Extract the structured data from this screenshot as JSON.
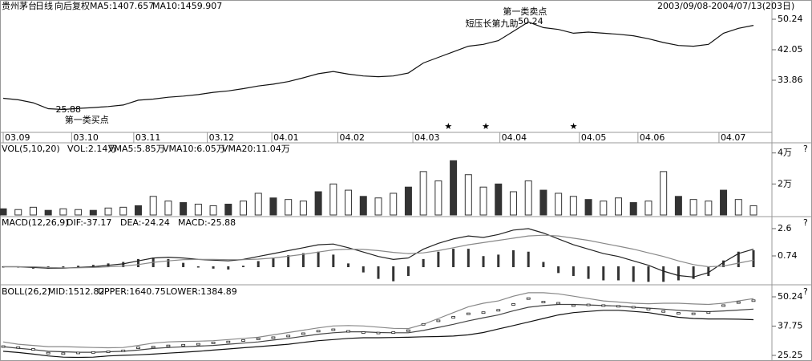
{
  "chart_data": [
    {
      "type": "line",
      "header": [
        {
          "text": "贵州茅台",
          "color": "#000"
        },
        {
          "text": "日线",
          "color": "#000"
        },
        {
          "text": "向后复权",
          "color": "#000"
        },
        {
          "text": "MA5:1407.657",
          "color": "#000"
        },
        {
          "text": "MA10:1459.907",
          "color": "#000"
        }
      ],
      "date_range": "2003/09/08-2004/07/13(203日)",
      "xlim": [
        0,
        50
      ],
      "xticks": [
        {
          "value": 0,
          "label": "03.09"
        },
        {
          "value": 4.56,
          "label": "03.10"
        },
        {
          "value": 8.7,
          "label": "03.11"
        },
        {
          "value": 13.6,
          "label": "03.12"
        },
        {
          "value": 17.9,
          "label": "04.01"
        },
        {
          "value": 22.3,
          "label": "04.02"
        },
        {
          "value": 27.3,
          "label": "04.03"
        },
        {
          "value": 33.1,
          "label": "04.04"
        },
        {
          "value": 38.4,
          "label": "04.05"
        },
        {
          "value": 42.3,
          "label": "04.06"
        },
        {
          "value": 47.7,
          "label": "04.07"
        }
      ],
      "ylim": [
        19.85,
        53.69
      ],
      "yticks": [
        33.86,
        42.05,
        50.24
      ],
      "series": [
        {
          "color": "#111",
          "kind": "line",
          "values": [
            29.0,
            28.6,
            27.8,
            26.2,
            26.0,
            26.3,
            26.5,
            26.8,
            27.2,
            28.5,
            28.8,
            29.3,
            29.6,
            30.0,
            30.6,
            31.0,
            31.6,
            32.3,
            32.8,
            33.5,
            34.5,
            35.6,
            36.2,
            35.5,
            35.0,
            34.8,
            35.0,
            35.8,
            38.5,
            40.0,
            41.5,
            43.0,
            43.5,
            44.5,
            47.0,
            49.5,
            48.0,
            47.5,
            46.5,
            46.8,
            46.5,
            46.2,
            45.8,
            45.0,
            44.0,
            43.2,
            43.0,
            43.5,
            46.5,
            47.8,
            48.6
          ]
        }
      ],
      "annotations": [
        {
          "text": "25.88",
          "x": 3.5,
          "y": 25.88
        },
        {
          "text": "第一类买点",
          "x": 4.1,
          "y": 23.1
        },
        {
          "text": "短压长第九助",
          "x": 30.8,
          "y": 48.9
        },
        {
          "text": "50.24",
          "x": 34.3,
          "y": 49.6
        },
        {
          "text": "第一类卖点",
          "x": 33.3,
          "y": 52.2
        },
        {
          "text": "★",
          "x": 29.4,
          "y": 21.36
        },
        {
          "text": "★",
          "x": 31.9,
          "y": 21.36
        },
        {
          "text": "★",
          "x": 37.75,
          "y": 21.36
        }
      ]
    },
    {
      "type": "bar",
      "header": [
        {
          "text": "VOL(5,10,20)",
          "color": "#000"
        },
        {
          "text": "VOL:2.14万",
          "color": "#000"
        },
        {
          "text": "VMA5:5.85万",
          "color": "#000"
        },
        {
          "text": "VMA10:6.05万",
          "color": "#888"
        },
        {
          "text": "VMA20:11.04万",
          "color": "#000"
        }
      ],
      "note": "?",
      "ylim": [
        0,
        45000
      ],
      "yticks": [
        {
          "value": 20000,
          "label": "2万"
        },
        {
          "value": 40000,
          "label": "4万"
        }
      ],
      "series": [
        {
          "color": "#333",
          "kind": "bar",
          "values": [
            4000,
            3500,
            5000,
            3000,
            4000,
            3500,
            3000,
            4500,
            5000,
            6000,
            12000,
            9000,
            8000,
            7000,
            6000,
            7000,
            9000,
            14000,
            11000,
            10000,
            9000,
            15000,
            20000,
            16000,
            12000,
            11000,
            14000,
            18000,
            28000,
            22000,
            35000,
            26000,
            18000,
            20000,
            15000,
            22000,
            16000,
            14000,
            12000,
            10000,
            9000,
            11000,
            8000,
            9000,
            28000,
            12000,
            10000,
            9000,
            16000,
            10000,
            6000
          ]
        }
      ]
    },
    {
      "type": "line",
      "header": [
        {
          "text": "MACD(12,26,9)",
          "color": "#000"
        },
        {
          "text": "DIF:-37.17",
          "color": "#000"
        },
        {
          "text": "DEA:-24.24",
          "color": "#000"
        },
        {
          "text": "MACD:-25.88",
          "color": "#000"
        }
      ],
      "note": "?",
      "ylim": [
        -1.12,
        3.31
      ],
      "yticks": [
        0.74,
        2.6
      ],
      "series": [
        {
          "color": "#333",
          "kind": "bar",
          "values": [
            0,
            0,
            -0.1,
            -0.1,
            -0.06,
            0.04,
            0.1,
            0.2,
            0.3,
            0.5,
            0.6,
            0.5,
            0.24,
            0,
            -0.1,
            -0.16,
            0.04,
            0.36,
            0.6,
            0.76,
            0.9,
            1.0,
            0.8,
            0.2,
            -0.36,
            -0.8,
            -0.96,
            -0.6,
            0.5,
            1.0,
            1.2,
            1.2,
            0.7,
            0.8,
            1.1,
            1.0,
            0.3,
            -0.4,
            -0.6,
            -0.8,
            -0.9,
            -0.9,
            -1.0,
            -1.0,
            -1.0,
            -0.9,
            -0.8,
            -0.6,
            0.4,
            1.0,
            1.1
          ]
        },
        {
          "color": "#222",
          "kind": "line",
          "values": [
            0,
            0,
            -0.05,
            -0.1,
            -0.1,
            -0.05,
            0,
            0.1,
            0.2,
            0.4,
            0.6,
            0.65,
            0.6,
            0.5,
            0.45,
            0.4,
            0.5,
            0.7,
            0.9,
            1.1,
            1.3,
            1.5,
            1.55,
            1.3,
            1.0,
            0.7,
            0.5,
            0.6,
            1.2,
            1.6,
            1.9,
            2.1,
            2.0,
            2.2,
            2.5,
            2.6,
            2.3,
            1.9,
            1.5,
            1.2,
            0.9,
            0.7,
            0.4,
            0.1,
            -0.3,
            -0.6,
            -0.7,
            -0.4,
            0.3,
            0.9,
            1.2
          ]
        },
        {
          "color": "#888",
          "kind": "line",
          "values": [
            0,
            0,
            0,
            -0.05,
            -0.07,
            -0.07,
            -0.05,
            0,
            0.05,
            0.15,
            0.3,
            0.4,
            0.48,
            0.5,
            0.5,
            0.48,
            0.48,
            0.52,
            0.6,
            0.72,
            0.85,
            1.0,
            1.15,
            1.2,
            1.18,
            1.1,
            0.98,
            0.9,
            0.95,
            1.1,
            1.3,
            1.5,
            1.65,
            1.8,
            1.95,
            2.1,
            2.15,
            2.1,
            1.95,
            1.8,
            1.6,
            1.4,
            1.2,
            0.95,
            0.7,
            0.4,
            0.15,
            0.0,
            0.05,
            0.25,
            0.45
          ]
        }
      ]
    },
    {
      "type": "line",
      "header": [
        {
          "text": "BOLL(26,2)",
          "color": "#000"
        },
        {
          "text": "MID:1512.82",
          "color": "#000"
        },
        {
          "text": "UPPER:1640.75",
          "color": "#888"
        },
        {
          "text": "LOWER:1384.89",
          "color": "#000"
        }
      ],
      "note": "?",
      "ylim": [
        23.54,
        54.35
      ],
      "yticks": [
        25.25,
        37.75,
        50.24
      ],
      "series": [
        {
          "color": "#888",
          "kind": "line",
          "values": [
            31,
            30,
            29.5,
            29,
            29,
            28.8,
            28.6,
            28.5,
            28.6,
            29.5,
            30.5,
            31,
            31.2,
            31.3,
            31.5,
            32,
            32.5,
            33,
            34,
            35,
            36,
            37,
            37.8,
            38,
            37.8,
            37.3,
            36.8,
            36.7,
            38.5,
            41,
            43.5,
            46,
            47.5,
            48.5,
            50.5,
            52,
            52,
            51.5,
            50.5,
            49.5,
            48.5,
            48,
            47.5,
            47.3,
            47.5,
            47.5,
            47.2,
            47,
            47.5,
            48.5,
            49.5
          ]
        },
        {
          "color": "#444",
          "kind": "line",
          "values": [
            29,
            28.3,
            27.7,
            27,
            26.8,
            26.6,
            26.6,
            26.8,
            27,
            27.5,
            28.2,
            28.6,
            28.9,
            29.2,
            29.5,
            30,
            30.5,
            31,
            31.8,
            32.5,
            33.4,
            34.3,
            34.9,
            35.3,
            35.3,
            35,
            34.9,
            34.9,
            35.9,
            37.2,
            38.5,
            40,
            41.3,
            42.5,
            44.3,
            45.8,
            46.5,
            47,
            47,
            46.8,
            46.5,
            46.3,
            45.8,
            45.4,
            45,
            44.5,
            44.1,
            43.9,
            44.2,
            44.6,
            45
          ]
        },
        {
          "color": "#111",
          "kind": "line",
          "values": [
            27,
            26.5,
            25.8,
            25,
            24.5,
            24.4,
            24.5,
            25,
            25.3,
            25.5,
            25.8,
            26.2,
            26.6,
            27,
            27.5,
            28,
            28.5,
            29,
            29.5,
            30,
            30.8,
            31.5,
            32,
            32.5,
            32.8,
            32.8,
            32.9,
            33,
            33.2,
            33.3,
            33.5,
            34,
            35,
            36.5,
            38,
            39.5,
            41,
            42.5,
            43.5,
            44,
            44.5,
            44.5,
            44,
            43.5,
            42.5,
            41.5,
            41,
            40.8,
            40.8,
            40.7,
            40.5
          ]
        }
      ]
    }
  ]
}
